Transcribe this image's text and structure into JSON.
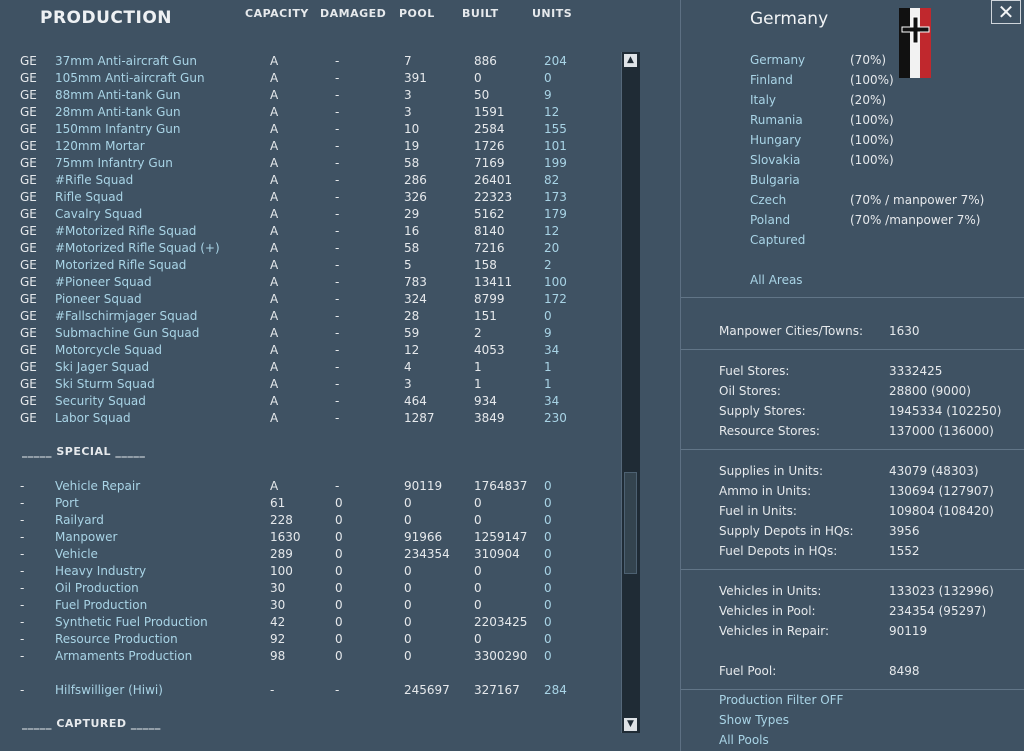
{
  "header": {
    "title": "PRODUCTION",
    "columns": [
      "CAPACITY",
      "DAMAGED",
      "POOL",
      "BUILT",
      "UNITS"
    ]
  },
  "units": [
    {
      "nat": "GE",
      "name": "37mm Anti-aircraft Gun",
      "cap": "A",
      "dmg": "-",
      "pool": "7",
      "built": "886",
      "units": "204"
    },
    {
      "nat": "GE",
      "name": "105mm Anti-aircraft Gun",
      "cap": "A",
      "dmg": "-",
      "pool": "391",
      "built": "0",
      "units": "0"
    },
    {
      "nat": "GE",
      "name": "88mm Anti-tank Gun",
      "cap": "A",
      "dmg": "-",
      "pool": "3",
      "built": "50",
      "units": "9"
    },
    {
      "nat": "GE",
      "name": "28mm Anti-tank Gun",
      "cap": "A",
      "dmg": "-",
      "pool": "3",
      "built": "1591",
      "units": "12"
    },
    {
      "nat": "GE",
      "name": "150mm Infantry Gun",
      "cap": "A",
      "dmg": "-",
      "pool": "10",
      "built": "2584",
      "units": "155"
    },
    {
      "nat": "GE",
      "name": "120mm Mortar",
      "cap": "A",
      "dmg": "-",
      "pool": "19",
      "built": "1726",
      "units": "101"
    },
    {
      "nat": "GE",
      "name": "75mm Infantry Gun",
      "cap": "A",
      "dmg": "-",
      "pool": "58",
      "built": "7169",
      "units": "199"
    },
    {
      "nat": "GE",
      "name": "#Rifle Squad",
      "cap": "A",
      "dmg": "-",
      "pool": "286",
      "built": "26401",
      "units": "82"
    },
    {
      "nat": "GE",
      "name": "Rifle Squad",
      "cap": "A",
      "dmg": "-",
      "pool": "326",
      "built": "22323",
      "units": "173"
    },
    {
      "nat": "GE",
      "name": "Cavalry Squad",
      "cap": "A",
      "dmg": "-",
      "pool": "29",
      "built": "5162",
      "units": "179"
    },
    {
      "nat": "GE",
      "name": "#Motorized Rifle Squad",
      "cap": "A",
      "dmg": "-",
      "pool": "16",
      "built": "8140",
      "units": "12"
    },
    {
      "nat": "GE",
      "name": "#Motorized Rifle Squad (+)",
      "cap": "A",
      "dmg": "-",
      "pool": "58",
      "built": "7216",
      "units": "20"
    },
    {
      "nat": "GE",
      "name": "Motorized Rifle Squad",
      "cap": "A",
      "dmg": "-",
      "pool": "5",
      "built": "158",
      "units": "2"
    },
    {
      "nat": "GE",
      "name": "#Pioneer Squad",
      "cap": "A",
      "dmg": "-",
      "pool": "783",
      "built": "13411",
      "units": "100"
    },
    {
      "nat": "GE",
      "name": "Pioneer Squad",
      "cap": "A",
      "dmg": "-",
      "pool": "324",
      "built": "8799",
      "units": "172"
    },
    {
      "nat": "GE",
      "name": "#Fallschirmjager Squad",
      "cap": "A",
      "dmg": "-",
      "pool": "28",
      "built": "151",
      "units": "0"
    },
    {
      "nat": "GE",
      "name": "Submachine Gun Squad",
      "cap": "A",
      "dmg": "-",
      "pool": "59",
      "built": "2",
      "units": "9"
    },
    {
      "nat": "GE",
      "name": "Motorcycle Squad",
      "cap": "A",
      "dmg": "-",
      "pool": "12",
      "built": "4053",
      "units": "34"
    },
    {
      "nat": "GE",
      "name": "Ski Jager Squad",
      "cap": "A",
      "dmg": "-",
      "pool": "4",
      "built": "1",
      "units": "1"
    },
    {
      "nat": "GE",
      "name": "Ski Sturm Squad",
      "cap": "A",
      "dmg": "-",
      "pool": "3",
      "built": "1",
      "units": "1"
    },
    {
      "nat": "GE",
      "name": "Security Squad",
      "cap": "A",
      "dmg": "-",
      "pool": "464",
      "built": "934",
      "units": "34"
    },
    {
      "nat": "GE",
      "name": "Labor Squad",
      "cap": "A",
      "dmg": "-",
      "pool": "1287",
      "built": "3849",
      "units": "230"
    }
  ],
  "special_label": "_____ SPECIAL _____",
  "special": [
    {
      "nat": "-",
      "name": "Vehicle Repair",
      "cap": "A",
      "dmg": "-",
      "pool": "90119",
      "built": "1764837",
      "units": "0"
    },
    {
      "nat": "-",
      "name": "Port",
      "cap": "61",
      "dmg": "0",
      "pool": "0",
      "built": "0",
      "units": "0"
    },
    {
      "nat": "-",
      "name": "Railyard",
      "cap": "228",
      "dmg": "0",
      "pool": "0",
      "built": "0",
      "units": "0"
    },
    {
      "nat": "-",
      "name": "Manpower",
      "cap": "1630",
      "dmg": "0",
      "pool": "91966",
      "built": "1259147",
      "units": "0"
    },
    {
      "nat": "-",
      "name": "Vehicle",
      "cap": "289",
      "dmg": "0",
      "pool": "234354",
      "built": "310904",
      "units": "0"
    },
    {
      "nat": "-",
      "name": "Heavy Industry",
      "cap": "100",
      "dmg": "0",
      "pool": "0",
      "built": "0",
      "units": "0"
    },
    {
      "nat": "-",
      "name": "Oil Production",
      "cap": "30",
      "dmg": "0",
      "pool": "0",
      "built": "0",
      "units": "0"
    },
    {
      "nat": "-",
      "name": "Fuel Production",
      "cap": "30",
      "dmg": "0",
      "pool": "0",
      "built": "0",
      "units": "0"
    },
    {
      "nat": "-",
      "name": "Synthetic Fuel Production",
      "cap": "42",
      "dmg": "0",
      "pool": "0",
      "built": "2203425",
      "units": "0"
    },
    {
      "nat": "-",
      "name": "Resource Production",
      "cap": "92",
      "dmg": "0",
      "pool": "0",
      "built": "0",
      "units": "0"
    },
    {
      "nat": "-",
      "name": "Armaments Production",
      "cap": "98",
      "dmg": "0",
      "pool": "0",
      "built": "3300290",
      "units": "0"
    }
  ],
  "hiwi": {
    "nat": "-",
    "name": "Hilfswilliger (Hiwi)",
    "cap": "-",
    "dmg": "-",
    "pool": "245697",
    "built": "327167",
    "units": "284"
  },
  "captured_label": "_____ CAPTURED _____",
  "nation": {
    "title": "Germany",
    "areas": [
      {
        "name": "Germany",
        "pct": "(70%)"
      },
      {
        "name": "Finland",
        "pct": "(100%)"
      },
      {
        "name": "Italy",
        "pct": "(20%)"
      },
      {
        "name": "Rumania",
        "pct": "(100%)"
      },
      {
        "name": "Hungary",
        "pct": "(100%)"
      },
      {
        "name": "Slovakia",
        "pct": "(100%)"
      },
      {
        "name": "Bulgaria",
        "pct": ""
      },
      {
        "name": "Czech",
        "pct": "(70% / manpower 7%)"
      },
      {
        "name": "Poland",
        "pct": "(70% /manpower 7%)"
      },
      {
        "name": "Captured",
        "pct": ""
      }
    ],
    "all_areas": "All Areas"
  },
  "stats": {
    "manpower": [
      {
        "label": "Manpower Cities/Towns:",
        "value": "1630"
      }
    ],
    "stores": [
      {
        "label": "Fuel Stores:",
        "value": "3332425"
      },
      {
        "label": "Oil Stores:",
        "value": "28800 (9000)"
      },
      {
        "label": "Supply Stores:",
        "value": "1945334 (102250)"
      },
      {
        "label": "Resource Stores:",
        "value": "137000 (136000)"
      }
    ],
    "units": [
      {
        "label": "Supplies in Units:",
        "value": "43079 (48303)"
      },
      {
        "label": "Ammo in Units:",
        "value": "130694 (127907)"
      },
      {
        "label": "Fuel in Units:",
        "value": "109804 (108420)"
      },
      {
        "label": "Supply Depots in HQs:",
        "value": "3956"
      },
      {
        "label": "Fuel Depots in HQs:",
        "value": "1552"
      }
    ],
    "vehicles": [
      {
        "label": "Vehicles in Units:",
        "value": "133023 (132996)"
      },
      {
        "label": "Vehicles in Pool:",
        "value": "234354 (95297)"
      },
      {
        "label": "Vehicles in Repair:",
        "value": "90119"
      }
    ],
    "fuel_pool": {
      "label": "Fuel Pool:",
      "value": "8498"
    }
  },
  "links": {
    "filter": "Production Filter OFF",
    "types": "Show Types",
    "pools": "All Pools"
  },
  "colors": {
    "background": "#3f5263",
    "link": "#a9d4e6",
    "text": "#e6e9ec"
  }
}
